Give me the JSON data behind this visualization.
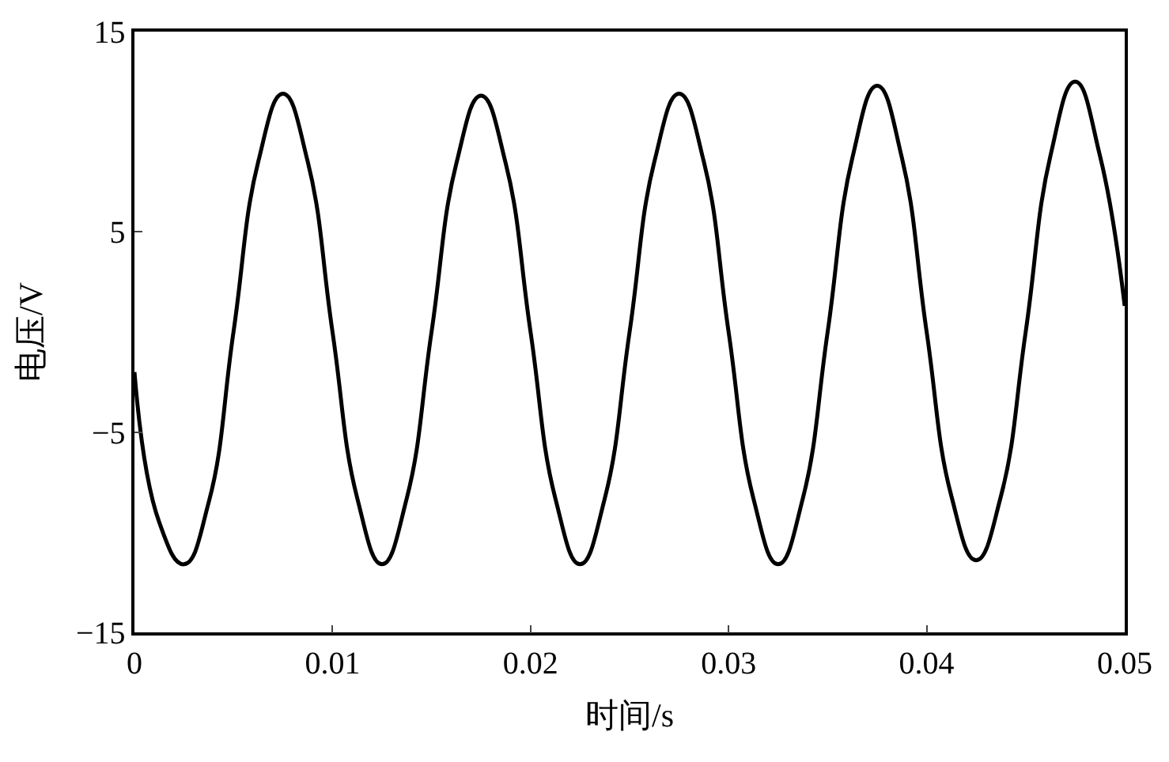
{
  "chart_data": {
    "type": "line",
    "xlabel": "时间/s",
    "ylabel": "电压/V",
    "x": [
      0,
      0.00125,
      0.0025,
      0.00375,
      0.005,
      0.00625,
      0.0075,
      0.00875,
      0.01,
      0.01125,
      0.0125,
      0.01375,
      0.015,
      0.01625,
      0.0175,
      0.01875,
      0.02,
      0.02125,
      0.0225,
      0.02375,
      0.025,
      0.02625,
      0.0275,
      0.02875,
      0.03,
      0.03125,
      0.0325,
      0.03375,
      0.035,
      0.03625,
      0.0375,
      0.03875,
      0.04,
      0.04125,
      0.0425,
      0.04375,
      0.045,
      0.04625,
      0.0475,
      0.04875,
      0.05
    ],
    "series": [
      {
        "color": "#000000",
        "values": [
          -2,
          -9.5,
          -11.6,
          -8.5,
          0,
          8.5,
          11.9,
          8.5,
          0,
          -8.3,
          -11.6,
          -8.3,
          0,
          8.4,
          11.8,
          8.4,
          0,
          -8.3,
          -11.6,
          -8.3,
          0,
          8.5,
          11.9,
          8.5,
          0,
          -8.3,
          -11.6,
          -8.3,
          0,
          8.7,
          12.3,
          8.7,
          0,
          -8.2,
          -11.4,
          -8.2,
          0,
          8.8,
          12.5,
          8.8,
          1.3
        ]
      }
    ],
    "xlim": [
      0,
      0.05
    ],
    "xticks": [
      0,
      0.01,
      0.02,
      0.03,
      0.04,
      0.05
    ],
    "ylim": [
      -15,
      15
    ],
    "yticks": [
      {
        "value": -15,
        "label": "−15"
      },
      {
        "value": -5,
        "label": "−5"
      },
      5,
      15
    ],
    "legend": false,
    "marker": "none",
    "line_style": "solid"
  }
}
